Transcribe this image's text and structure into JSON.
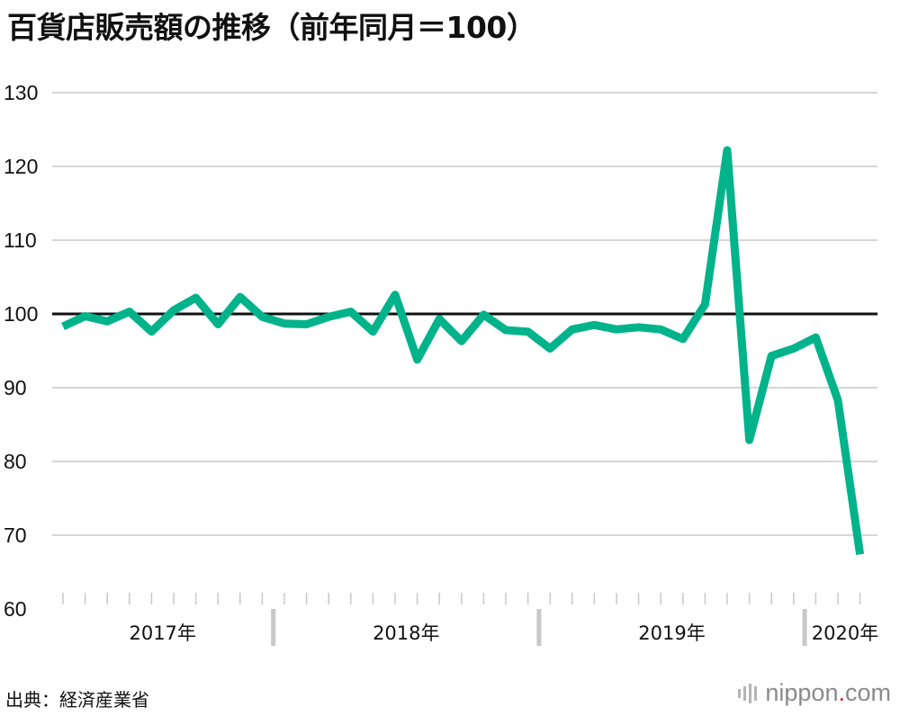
{
  "title": "百貨店販売額の推移（前年同月＝100）",
  "source": "出典：経済産業省",
  "brand": {
    "name": "nippon",
    "dot": ".",
    "tld": "com",
    "dot_color": "#d0192a"
  },
  "colors": {
    "line": "#00b38a",
    "reference": "#111111",
    "grid": "#c8c8c8",
    "axis_tick": "#c8c8c8"
  },
  "chart_data": {
    "type": "line",
    "title": "百貨店販売額の推移（前年同月＝100）",
    "xlabel": "",
    "ylabel": "",
    "ylim": [
      60,
      130
    ],
    "yticks": [
      60,
      70,
      80,
      90,
      100,
      110,
      120,
      130
    ],
    "grid": true,
    "reference_line": 100,
    "x_groups": [
      {
        "label": "2017年",
        "months": 10
      },
      {
        "label": "2018年",
        "months": 12
      },
      {
        "label": "2019年",
        "months": 12
      },
      {
        "label": "2020年",
        "months": 3
      }
    ],
    "x": [
      "2017-03",
      "2017-04",
      "2017-05",
      "2017-06",
      "2017-07",
      "2017-08",
      "2017-09",
      "2017-10",
      "2017-11",
      "2017-12",
      "2018-01",
      "2018-02",
      "2018-03",
      "2018-04",
      "2018-05",
      "2018-06",
      "2018-07",
      "2018-08",
      "2018-09",
      "2018-10",
      "2018-11",
      "2018-12",
      "2019-01",
      "2019-02",
      "2019-03",
      "2019-04",
      "2019-05",
      "2019-06",
      "2019-07",
      "2019-08",
      "2019-09",
      "2019-10",
      "2019-11",
      "2019-12",
      "2020-01",
      "2020-02",
      "2020-03"
    ],
    "series": [
      {
        "color": "#00b38a",
        "values": [
          98.3,
          99.7,
          99.0,
          100.3,
          97.6,
          100.5,
          102.2,
          98.6,
          102.3,
          99.6,
          98.7,
          98.6,
          99.6,
          100.3,
          97.6,
          102.6,
          93.8,
          99.3,
          96.3,
          99.9,
          97.8,
          97.6,
          95.3,
          97.9,
          98.5,
          97.9,
          98.2,
          97.9,
          96.6,
          101.3,
          122.2,
          82.9,
          94.3,
          95.3,
          96.8,
          88.3,
          67.4
        ]
      }
    ]
  }
}
